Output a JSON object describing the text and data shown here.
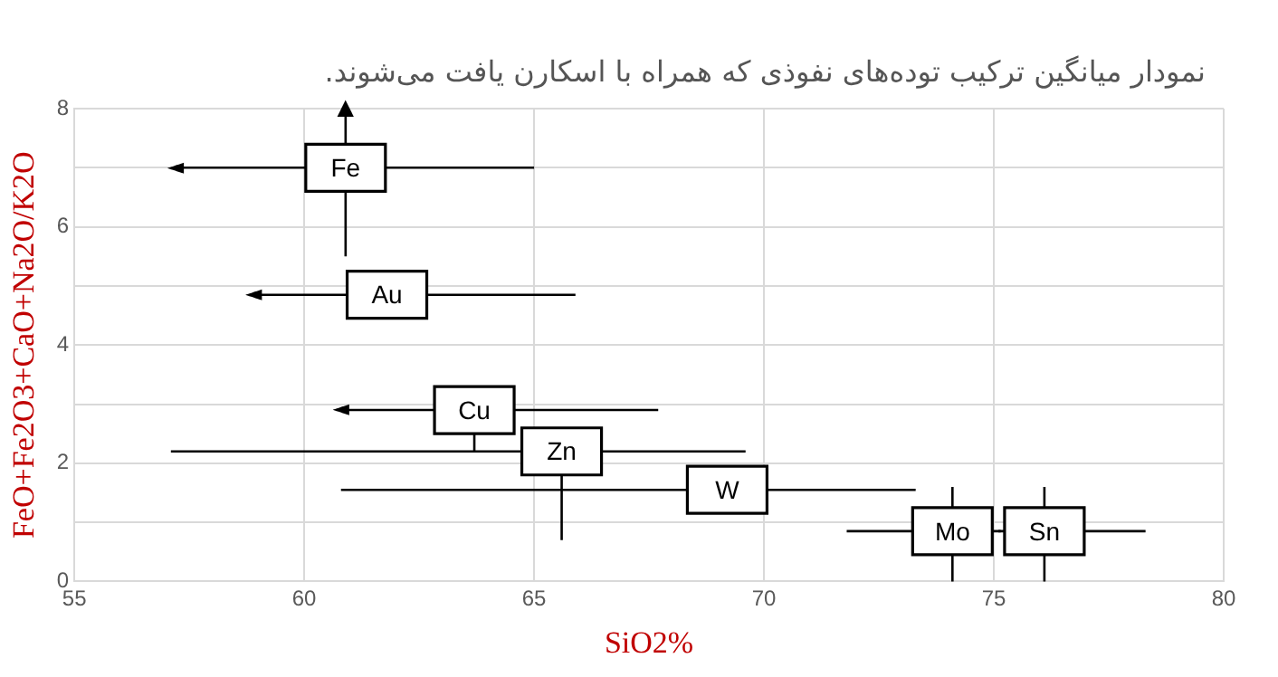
{
  "chart_data": {
    "type": "scatter",
    "title": "نمودار میانگین ترکیب توده‌های نفوذی که همراه با اسکارن یافت می‌شوند.",
    "xlabel": "SiO2%",
    "ylabel": "FeO+Fe2O3+CaO+Na2O/K2O",
    "marker": "square",
    "grid": true,
    "legend": false,
    "xlim": [
      55,
      80
    ],
    "xticks": [
      55,
      60,
      65,
      70,
      75,
      80
    ],
    "ylim": [
      0,
      8
    ],
    "yticks": [
      0,
      {
        "value": 1,
        "label": null
      },
      2,
      {
        "value": 3,
        "label": null
      },
      4,
      {
        "value": 5,
        "label": null
      },
      6,
      {
        "value": 7,
        "label": null
      },
      8
    ],
    "series": [
      {
        "name": "Fe",
        "color": "#000000",
        "x": [
          60.9
        ],
        "values": [
          7.0
        ],
        "xerrors": [
          [
            57.2,
            65.0
          ]
        ],
        "errors": [
          [
            5.5,
            8.0
          ]
        ]
      },
      {
        "name": "Au",
        "color": "#000000",
        "x": [
          61.8
        ],
        "values": [
          4.85
        ],
        "xerrors": [
          [
            58.9,
            65.9
          ]
        ]
      },
      {
        "name": "Cu",
        "color": "#000000",
        "x": [
          63.7
        ],
        "values": [
          2.9
        ],
        "xerrors": [
          [
            60.8,
            67.7
          ]
        ],
        "errors": [
          [
            2.2,
            2.9
          ]
        ]
      },
      {
        "name": "Zn",
        "color": "#000000",
        "x": [
          65.6
        ],
        "values": [
          2.2
        ],
        "xerrors": [
          [
            57.1,
            69.6
          ]
        ],
        "errors": [
          [
            0.7,
            2.2
          ]
        ]
      },
      {
        "name": "W",
        "color": "#000000",
        "x": [
          69.2
        ],
        "values": [
          1.55
        ],
        "xerrors": [
          [
            60.8,
            73.3
          ]
        ]
      },
      {
        "name": "Mo",
        "color": "#000000",
        "x": [
          74.1
        ],
        "values": [
          0.85
        ],
        "xerrors": [
          [
            71.8,
            75.15
          ]
        ],
        "errors": [
          [
            0,
            1.6
          ]
        ]
      },
      {
        "name": "Sn",
        "color": "#000000",
        "x": [
          76.1
        ],
        "values": [
          0.85
        ],
        "xerrors": [
          [
            75.1,
            78.3
          ]
        ],
        "errors": [
          [
            0,
            1.6
          ]
        ]
      }
    ],
    "annotations": [
      {
        "text": "◄",
        "x": 57.2,
        "y": 7.0
      },
      {
        "text": "▲",
        "x": 60.9,
        "y": 8.0
      },
      {
        "text": "◄",
        "x": 58.9,
        "y": 4.85
      },
      {
        "text": "◄",
        "x": 60.8,
        "y": 2.9
      }
    ]
  }
}
